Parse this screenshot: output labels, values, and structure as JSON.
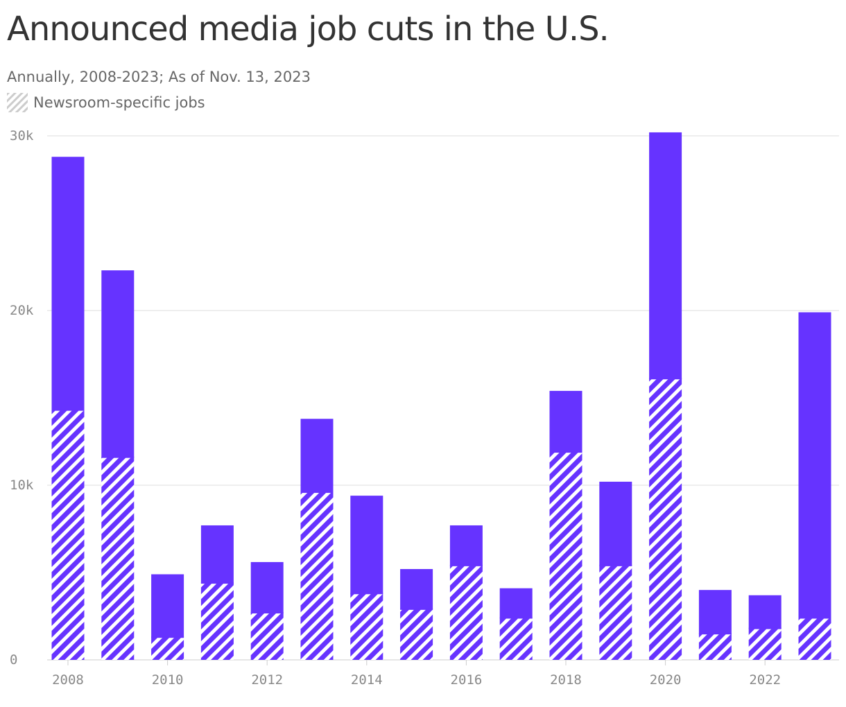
{
  "title": "Announced media job cuts in the U.S.",
  "subtitle": "Annually, 2008-2023; As of Nov. 13, 2023",
  "legend": {
    "hatched_label": "Newsroom-specific jobs"
  },
  "colors": {
    "bar": "#6633ff",
    "hatch_bg": "#ffffff",
    "grid": "#dddddd",
    "axis_text": "#888888",
    "legend_hatch": "#cccccc"
  },
  "chart_data": {
    "type": "bar",
    "stacked": true,
    "categories": [
      2008,
      2009,
      2010,
      2011,
      2012,
      2013,
      2014,
      2015,
      2016,
      2017,
      2018,
      2019,
      2020,
      2021,
      2022,
      2023
    ],
    "series": [
      {
        "name": "Newsroom-specific jobs",
        "values": [
          14300,
          11600,
          1300,
          4400,
          2700,
          9600,
          3800,
          2900,
          5400,
          2400,
          11900,
          5400,
          16100,
          1500,
          1800,
          2400
        ]
      },
      {
        "values": [
          14500,
          10700,
          3600,
          3300,
          2900,
          4200,
          5600,
          2300,
          2300,
          1700,
          3500,
          4800,
          14100,
          2500,
          1900,
          17500
        ]
      }
    ],
    "totals": [
      28800,
      22300,
      4900,
      7700,
      5600,
      13800,
      9400,
      5200,
      7700,
      4100,
      15400,
      10200,
      30200,
      4000,
      3700,
      19900
    ],
    "ylim": [
      0,
      30500
    ],
    "yticks": [
      0,
      10000,
      20000,
      30000
    ],
    "ytick_labels": [
      "0",
      "10k",
      "20k",
      "30k"
    ],
    "xticks": [
      2008,
      2010,
      2012,
      2014,
      2016,
      2018,
      2020,
      2022
    ],
    "xtick_labels": [
      "2008",
      "2010",
      "2012",
      "2014",
      "2016",
      "2018",
      "2020",
      "2022"
    ],
    "grid": true
  }
}
